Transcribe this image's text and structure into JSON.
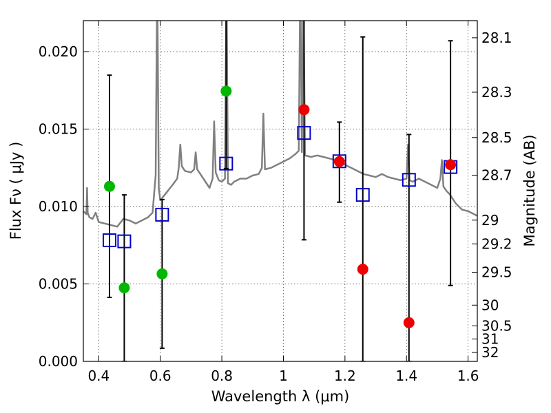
{
  "chart_data": {
    "type": "scatter",
    "xlabel": "Wavelength  λ (μm)",
    "ylabel": "Flux  Fν  ( μJy )",
    "ylabel_right": "Magnitude (AB)",
    "xlim": [
      0.35,
      1.63
    ],
    "ylim": [
      0.0,
      0.022
    ],
    "grid": true,
    "x_ticks": [
      {
        "value": 0.4,
        "label": "0.4"
      },
      {
        "value": 0.6,
        "label": "0.6"
      },
      {
        "value": 0.8,
        "label": "0.8"
      },
      {
        "value": 1.0,
        "label": "1"
      },
      {
        "value": 1.2,
        "label": "1.2"
      },
      {
        "value": 1.4,
        "label": "1.4"
      },
      {
        "value": 1.6,
        "label": "1.6"
      }
    ],
    "y_ticks": [
      {
        "value": 0.0,
        "label": "0.000"
      },
      {
        "value": 0.005,
        "label": "0.005"
      },
      {
        "value": 0.01,
        "label": "0.010"
      },
      {
        "value": 0.015,
        "label": "0.015"
      },
      {
        "value": 0.02,
        "label": "0.020"
      }
    ],
    "mag_ticks": [
      {
        "mag": 28.1,
        "label": "28.1"
      },
      {
        "mag": 28.3,
        "label": "28.3"
      },
      {
        "mag": 28.5,
        "label": "28.5"
      },
      {
        "mag": 28.7,
        "label": "28.7"
      },
      {
        "mag": 29.0,
        "label": "29"
      },
      {
        "mag": 29.2,
        "label": "29.2"
      },
      {
        "mag": 29.5,
        "label": "29.5"
      },
      {
        "mag": 30.0,
        "label": "30"
      },
      {
        "mag": 30.5,
        "label": "30.5"
      },
      {
        "mag": 31.0,
        "label": "31"
      },
      {
        "mag": 32.0,
        "label": "32"
      }
    ],
    "colors": {
      "template": "#808080",
      "model": "#0000cc",
      "green": "#00b800",
      "red": "#ee0000",
      "errorbar": "#000000"
    },
    "template_spectrum": [
      [
        0.35,
        0.0097
      ],
      [
        0.36,
        0.0095
      ],
      [
        0.362,
        0.0112
      ],
      [
        0.364,
        0.0096
      ],
      [
        0.37,
        0.0093
      ],
      [
        0.38,
        0.0092
      ],
      [
        0.39,
        0.0096
      ],
      [
        0.4,
        0.009
      ],
      [
        0.42,
        0.0089
      ],
      [
        0.44,
        0.0088
      ],
      [
        0.46,
        0.0087
      ],
      [
        0.48,
        0.0092
      ],
      [
        0.5,
        0.0091
      ],
      [
        0.52,
        0.0089
      ],
      [
        0.54,
        0.0091
      ],
      [
        0.56,
        0.0093
      ],
      [
        0.575,
        0.0096
      ],
      [
        0.585,
        0.012
      ],
      [
        0.59,
        0.025
      ],
      [
        0.595,
        0.0112
      ],
      [
        0.6,
        0.0104
      ],
      [
        0.62,
        0.0109
      ],
      [
        0.64,
        0.0114
      ],
      [
        0.655,
        0.0118
      ],
      [
        0.66,
        0.0125
      ],
      [
        0.665,
        0.014
      ],
      [
        0.67,
        0.0126
      ],
      [
        0.68,
        0.0123
      ],
      [
        0.7,
        0.0122
      ],
      [
        0.71,
        0.0124
      ],
      [
        0.715,
        0.0135
      ],
      [
        0.72,
        0.0124
      ],
      [
        0.74,
        0.0118
      ],
      [
        0.76,
        0.0112
      ],
      [
        0.77,
        0.0118
      ],
      [
        0.775,
        0.0155
      ],
      [
        0.78,
        0.0122
      ],
      [
        0.79,
        0.0117
      ],
      [
        0.8,
        0.0116
      ],
      [
        0.81,
        0.0118
      ],
      [
        0.815,
        0.025
      ],
      [
        0.82,
        0.0115
      ],
      [
        0.83,
        0.0114
      ],
      [
        0.84,
        0.0116
      ],
      [
        0.86,
        0.0118
      ],
      [
        0.88,
        0.0118
      ],
      [
        0.9,
        0.012
      ],
      [
        0.92,
        0.0121
      ],
      [
        0.93,
        0.0125
      ],
      [
        0.935,
        0.016
      ],
      [
        0.94,
        0.0124
      ],
      [
        0.96,
        0.0125
      ],
      [
        0.98,
        0.0127
      ],
      [
        1.0,
        0.0129
      ],
      [
        1.02,
        0.0131
      ],
      [
        1.04,
        0.0134
      ],
      [
        1.05,
        0.0136
      ],
      [
        1.055,
        0.025
      ],
      [
        1.06,
        0.0135
      ],
      [
        1.065,
        0.025
      ],
      [
        1.07,
        0.0133
      ],
      [
        1.09,
        0.0132
      ],
      [
        1.11,
        0.0133
      ],
      [
        1.13,
        0.0132
      ],
      [
        1.15,
        0.0131
      ],
      [
        1.17,
        0.013
      ],
      [
        1.18,
        0.0128
      ],
      [
        1.2,
        0.0127
      ],
      [
        1.22,
        0.0125
      ],
      [
        1.24,
        0.0123
      ],
      [
        1.26,
        0.0121
      ],
      [
        1.28,
        0.012
      ],
      [
        1.3,
        0.0119
      ],
      [
        1.32,
        0.0121
      ],
      [
        1.34,
        0.0119
      ],
      [
        1.36,
        0.0118
      ],
      [
        1.38,
        0.0117
      ],
      [
        1.4,
        0.0118
      ],
      [
        1.405,
        0.014
      ],
      [
        1.41,
        0.0117
      ],
      [
        1.42,
        0.0116
      ],
      [
        1.44,
        0.0118
      ],
      [
        1.46,
        0.0116
      ],
      [
        1.48,
        0.0114
      ],
      [
        1.5,
        0.0112
      ],
      [
        1.51,
        0.0118
      ],
      [
        1.515,
        0.013
      ],
      [
        1.52,
        0.0113
      ],
      [
        1.53,
        0.011
      ],
      [
        1.54,
        0.0108
      ],
      [
        1.55,
        0.0105
      ],
      [
        1.56,
        0.0102
      ],
      [
        1.57,
        0.01
      ],
      [
        1.58,
        0.0098
      ],
      [
        1.6,
        0.0097
      ],
      [
        1.62,
        0.0095
      ],
      [
        1.63,
        0.0094
      ]
    ],
    "model_points": [
      {
        "x": 0.435,
        "y": 0.00782
      },
      {
        "x": 0.483,
        "y": 0.00775
      },
      {
        "x": 0.606,
        "y": 0.00947
      },
      {
        "x": 0.814,
        "y": 0.01277
      },
      {
        "x": 1.067,
        "y": 0.01475
      },
      {
        "x": 1.182,
        "y": 0.01292
      },
      {
        "x": 1.258,
        "y": 0.01075
      },
      {
        "x": 1.408,
        "y": 0.01172
      },
      {
        "x": 1.543,
        "y": 0.01255
      }
    ],
    "observed_points": [
      {
        "x": 0.435,
        "y": 0.0113,
        "group": "green",
        "err_lo": 0.00413,
        "err_hi": 0.01848
      },
      {
        "x": 0.483,
        "y": 0.00475,
        "group": "green",
        "err_lo": 0.0,
        "err_hi": 0.01075
      },
      {
        "x": 0.606,
        "y": 0.00565,
        "group": "green",
        "err_lo": 0.00085,
        "err_hi": 0.01045
      },
      {
        "x": 0.814,
        "y": 0.01745,
        "group": "green",
        "err_lo": 0.01245,
        "err_hi": 0.0225
      },
      {
        "x": 1.067,
        "y": 0.01625,
        "group": "red",
        "err_lo": 0.00785,
        "err_hi": 0.0225
      },
      {
        "x": 1.182,
        "y": 0.0129,
        "group": "red",
        "err_lo": 0.01028,
        "err_hi": 0.01545
      },
      {
        "x": 1.258,
        "y": 0.00595,
        "group": "red",
        "err_lo": 0.0,
        "err_hi": 0.02095
      },
      {
        "x": 1.408,
        "y": 0.0025,
        "group": "red",
        "err_lo": 0.0,
        "err_hi": 0.01465
      },
      {
        "x": 1.543,
        "y": 0.0127,
        "group": "red",
        "err_lo": 0.0049,
        "err_hi": 0.0207
      }
    ]
  }
}
